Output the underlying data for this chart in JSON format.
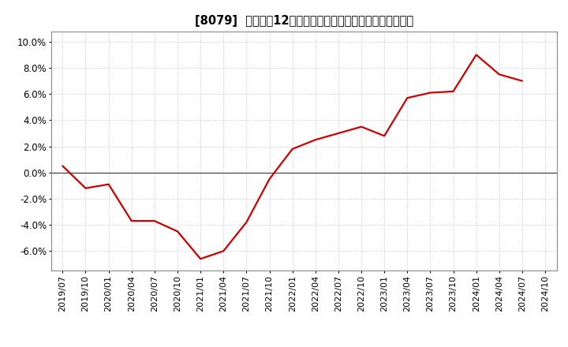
{
  "title": "[8079]  売上高の12か月移動合計の対前年同期増減率の推移",
  "line_color": "#cc0000",
  "bg_color": "#ffffff",
  "plot_bg_color": "#ffffff",
  "grid_color": "#bbbbbb",
  "zero_line_color": "#333333",
  "spine_color": "#888888",
  "ylim": [
    -0.075,
    0.108
  ],
  "yticks": [
    -0.06,
    -0.04,
    -0.02,
    0.0,
    0.02,
    0.04,
    0.06,
    0.08,
    0.1
  ],
  "dates": [
    "2019/07",
    "2019/10",
    "2020/01",
    "2020/04",
    "2020/07",
    "2020/10",
    "2021/01",
    "2021/04",
    "2021/07",
    "2021/10",
    "2022/01",
    "2022/04",
    "2022/07",
    "2022/10",
    "2023/01",
    "2023/04",
    "2023/07",
    "2023/10",
    "2024/01",
    "2024/04",
    "2024/07",
    "2024/10"
  ],
  "values": [
    0.005,
    -0.012,
    -0.009,
    -0.037,
    -0.037,
    -0.045,
    -0.066,
    -0.06,
    -0.038,
    -0.005,
    0.018,
    0.025,
    0.03,
    0.035,
    0.028,
    0.057,
    0.061,
    0.062,
    0.09,
    0.075,
    0.07,
    null
  ],
  "title_fontsize": 10.5,
  "tick_fontsize": 8,
  "ytick_fontsize": 8.5,
  "linewidth": 1.6
}
